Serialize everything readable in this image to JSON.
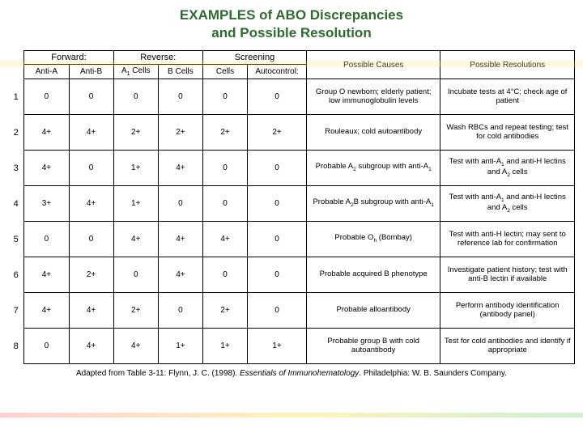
{
  "title_line1": "EXAMPLES of ABO Discrepancies",
  "title_line2": "and Possible Resolution",
  "title_color": "#2e6b2e",
  "headers": {
    "forward": "Forward:",
    "reverse": "Reverse:",
    "screening": "Screening",
    "anti_a": "Anti-A",
    "anti_b": "Anti-B",
    "a1_cells": "A",
    "a1_cells_sub": "1",
    "a1_cells_after": " Cells",
    "b_cells": "B Cells",
    "cells": "Cells",
    "autocontrol": "Autocontrol:",
    "possible_causes": "Possible Causes",
    "possible_resolutions": "Possible Resolutions"
  },
  "col_widths": {
    "rownum": 18,
    "fwd": 50,
    "rev": 50,
    "scr": 50,
    "auto": 66,
    "cause": 150,
    "res": 150
  },
  "rows": [
    {
      "n": "1",
      "a": "0",
      "b": "0",
      "a1": "0",
      "bc": "0",
      "sc": "0",
      "ac": "0",
      "cause": "Group O newborn; elderly patient; low immunoglobulin levels",
      "res": "Incubate tests at 4°C; check age of patient"
    },
    {
      "n": "2",
      "a": "4+",
      "b": "4+",
      "a1": "2+",
      "bc": "2+",
      "sc": "2+",
      "ac": "2+",
      "cause": "Rouleaux; cold autoantibody",
      "res": "Wash RBCs and repeat testing; test for cold antibodies"
    },
    {
      "n": "3",
      "a": "4+",
      "b": "0",
      "a1": "1+",
      "bc": "4+",
      "sc": "0",
      "ac": "0",
      "cause": "Probable A<sub>2</sub> subgroup with anti-A<sub>1</sub>",
      "res": "Test with anti-A<sub>1</sub> and anti-H lectins and A<sub>2</sub> cells"
    },
    {
      "n": "4",
      "a": "3+",
      "b": "4+",
      "a1": "1+",
      "bc": "0",
      "sc": "0",
      "ac": "0",
      "cause": "Probable A<sub>2</sub>B subgroup with anti-A<sub>1</sub>",
      "res": "Test with anti-A<sub>1</sub> and anti-H lectins and A<sub>2</sub> cells"
    },
    {
      "n": "5",
      "a": "0",
      "b": "0",
      "a1": "4+",
      "bc": "4+",
      "sc": "4+",
      "ac": "0",
      "cause": "Probable O<sub>h</sub> (Bombay)",
      "res": "Test with anti-H lectin; may sent to reference lab for confirmation"
    },
    {
      "n": "6",
      "a": "4+",
      "b": "2+",
      "a1": "0",
      "bc": "4+",
      "sc": "0",
      "ac": "0",
      "cause": "Probable acquired B phenotype",
      "res": "Investigate patient history; test with anti-B lectin if available"
    },
    {
      "n": "7",
      "a": "4+",
      "b": "4+",
      "a1": "2+",
      "bc": "0",
      "sc": "2+",
      "ac": "0",
      "cause": "Probable alloantibody",
      "res": "Perform antibody identification (antibody panel)"
    },
    {
      "n": "8",
      "a": "0",
      "b": "4+",
      "a1": "4+",
      "bc": "1+",
      "sc": "1+",
      "ac": "1+",
      "cause": "Probable group B with cold autoantibody",
      "res": "Test for cold antibodies and identify if appropriate"
    }
  ],
  "citation_prefix": "Adapted from Table 3-11: Flynn, J. C. (1998). ",
  "citation_italic": "Essentials of Immunohematology",
  "citation_suffix": ". Philadelphia: W. B. Saunders Company."
}
